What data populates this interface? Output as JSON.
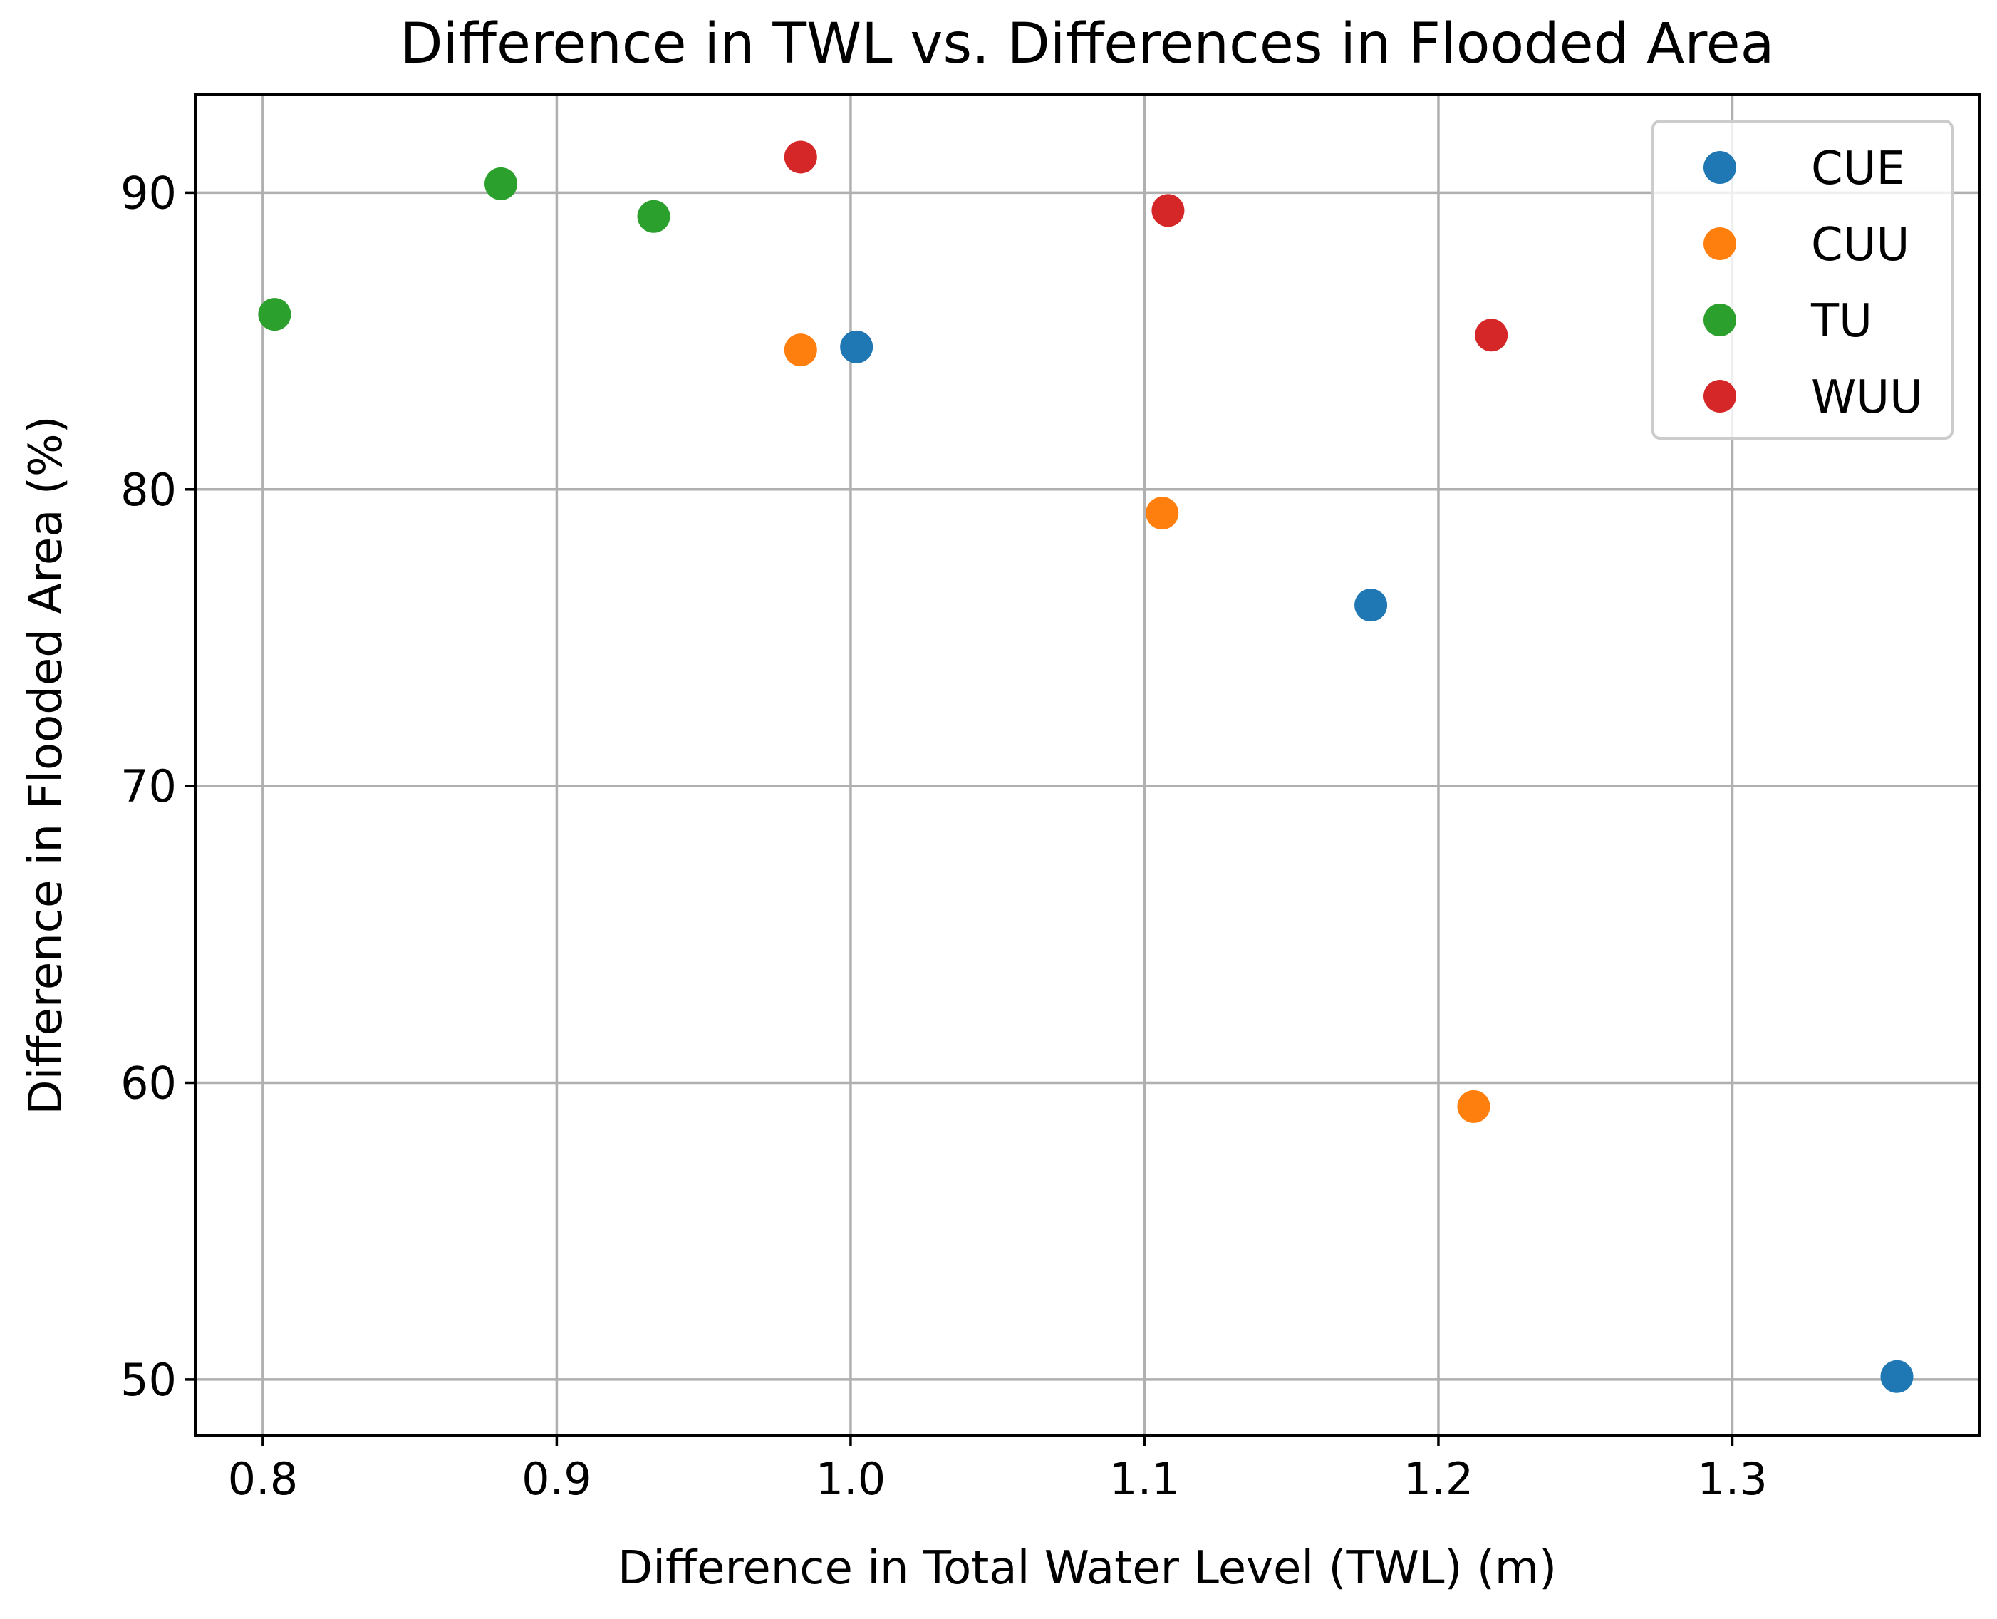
{
  "chart_data": {
    "type": "scatter",
    "title": "Difference in TWL vs. Differences in Flooded Area",
    "xlabel": "Difference in Total Water Level (TWL) (m)",
    "ylabel": "Difference in Flooded Area (%)",
    "xlim": [
      0.777,
      1.384
    ],
    "ylim": [
      48.1,
      93.3
    ],
    "xticks": [
      0.8,
      0.9,
      1.0,
      1.1,
      1.2,
      1.3
    ],
    "xtick_labels": [
      "0.8",
      "0.9",
      "1.0",
      "1.1",
      "1.2",
      "1.3"
    ],
    "yticks": [
      50,
      60,
      70,
      80,
      90
    ],
    "ytick_labels": [
      "50",
      "60",
      "70",
      "80",
      "90"
    ],
    "grid": true,
    "legend_position": "top-right",
    "series": [
      {
        "name": "CUE",
        "color": "#1f77b4",
        "x": [
          1.002,
          1.177,
          1.356
        ],
        "y": [
          84.8,
          76.1,
          50.1
        ]
      },
      {
        "name": "CUU",
        "color": "#ff7f0e",
        "x": [
          0.983,
          1.106,
          1.212
        ],
        "y": [
          84.7,
          79.2,
          59.2
        ]
      },
      {
        "name": "TU",
        "color": "#2ca02c",
        "x": [
          0.804,
          0.881,
          0.933
        ],
        "y": [
          85.9,
          90.3,
          89.2
        ]
      },
      {
        "name": "WUU",
        "color": "#d62728",
        "x": [
          0.983,
          1.108,
          1.218
        ],
        "y": [
          91.2,
          89.4,
          85.2
        ]
      }
    ]
  }
}
